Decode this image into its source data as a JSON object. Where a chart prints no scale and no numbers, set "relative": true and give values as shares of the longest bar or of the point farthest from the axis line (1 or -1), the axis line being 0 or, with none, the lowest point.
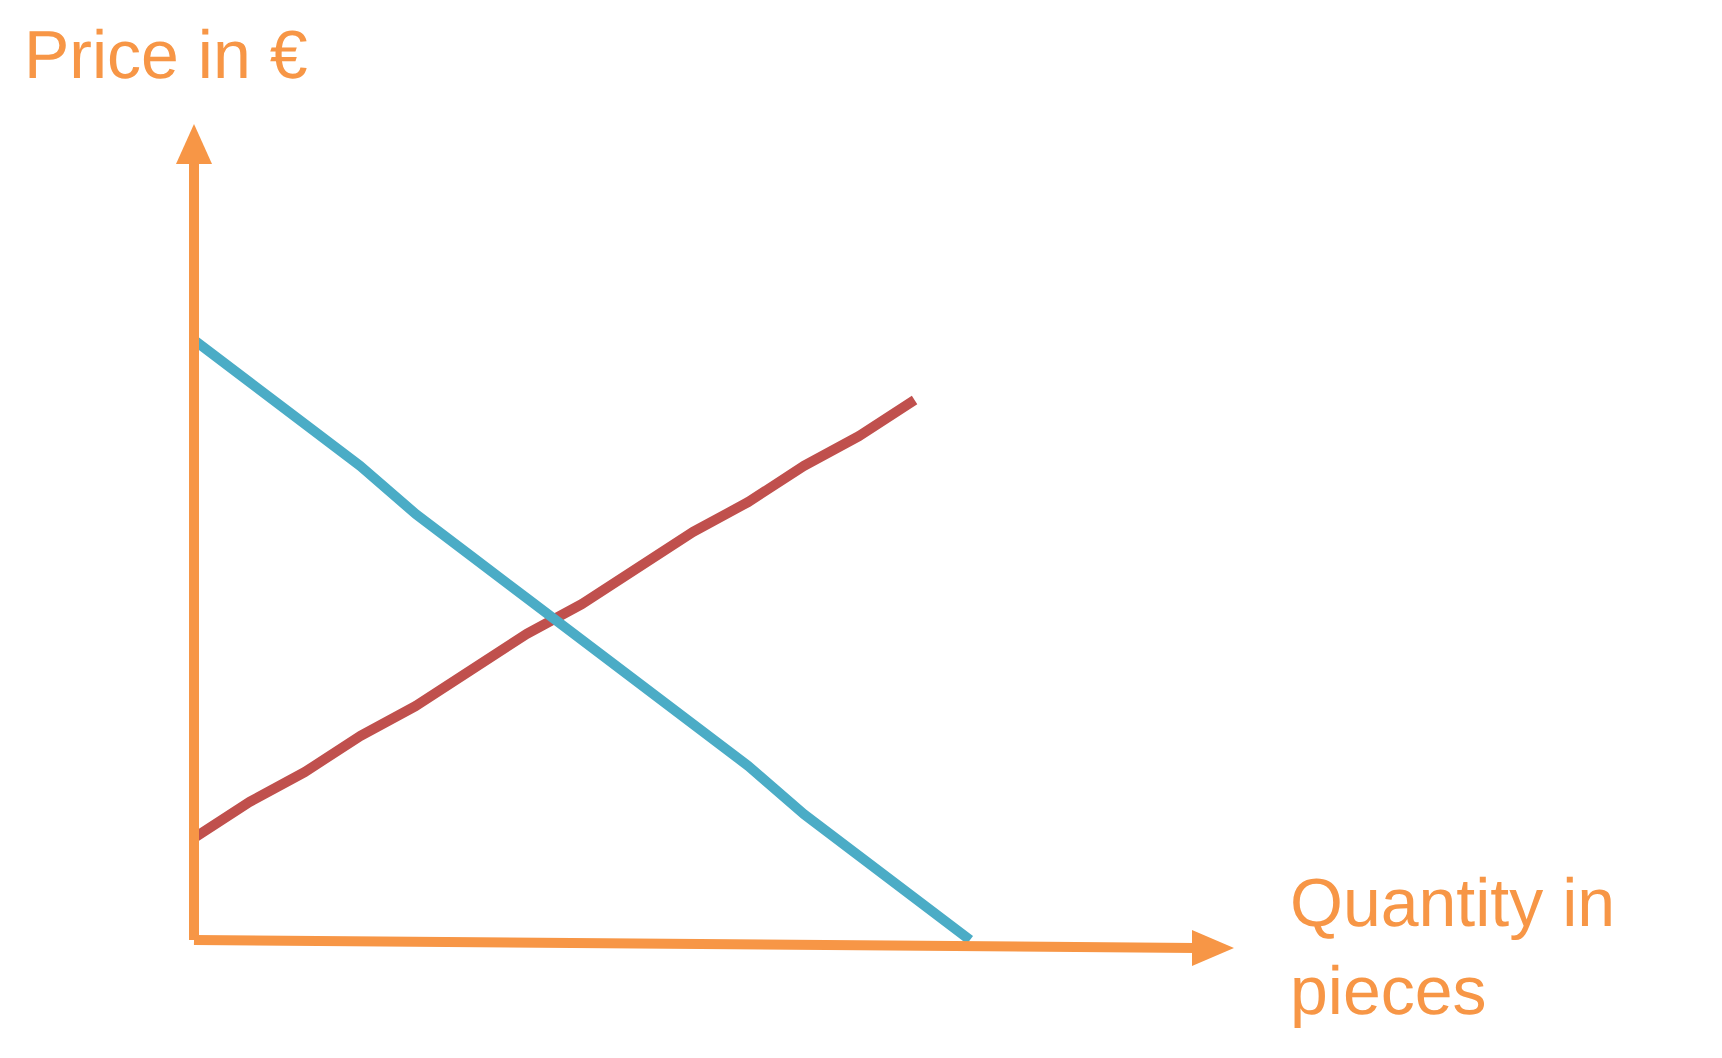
{
  "chart_data": {
    "type": "line",
    "relative": true,
    "xlabel": "Quantity in pieces",
    "ylabel": "Price in €",
    "marker": "none",
    "line_style": "solid",
    "categories": [
      null,
      null,
      null,
      null,
      null,
      null,
      null,
      null,
      null,
      null,
      null,
      null,
      null,
      null,
      null
    ],
    "series": [
      {
        "color": "#4bacc6",
        "values": [
          1,
          0.93,
          0.86,
          0.79,
          0.71,
          0.64,
          0.57,
          0.5,
          0.43,
          0.36,
          0.29,
          0.21,
          0.14,
          0.07,
          0
        ]
      },
      {
        "color": "#c0504d",
        "values": [
          0.17,
          0.23,
          0.28,
          0.34,
          0.39,
          0.45,
          0.51,
          0.56,
          0.62,
          0.68,
          0.73,
          0.79,
          0.84,
          0.9,
          null
        ]
      }
    ]
  }
}
